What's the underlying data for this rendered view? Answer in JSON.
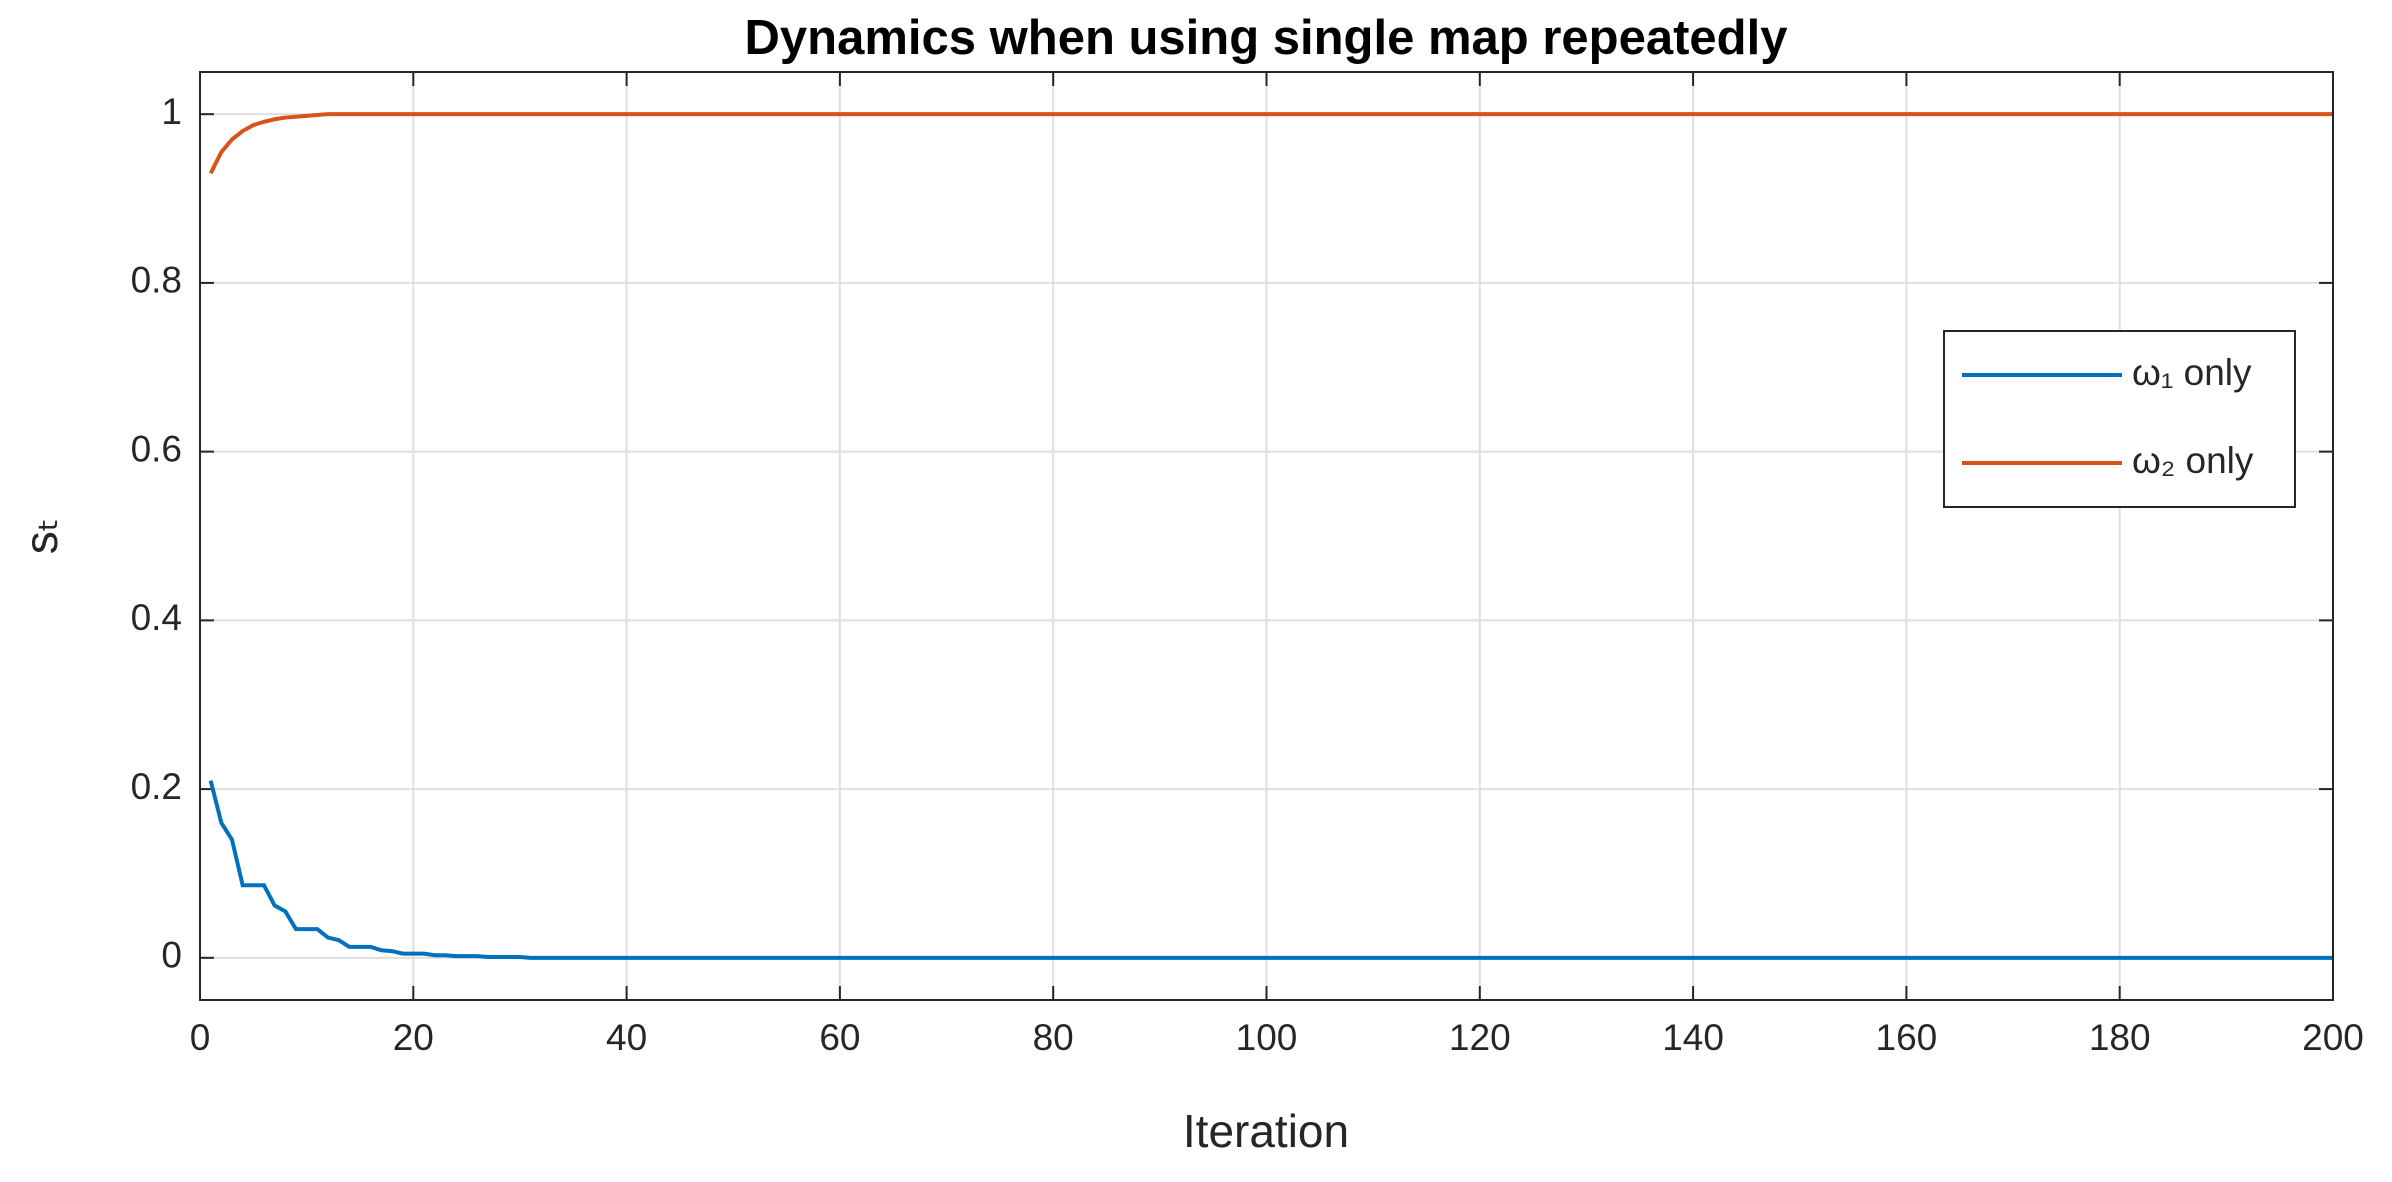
{
  "chart_data": {
    "type": "line",
    "title": "Dynamics when using single map repeatedly",
    "x_label": "Iteration",
    "y_label": "sₜ",
    "x": [
      1,
      2,
      3,
      4,
      5,
      6,
      7,
      8,
      9,
      10,
      11,
      12,
      13,
      14,
      15,
      16,
      17,
      18,
      19,
      20,
      21,
      22,
      23,
      24,
      25,
      26,
      27,
      28,
      29,
      30,
      31,
      32,
      33,
      34,
      35,
      200
    ],
    "series": [
      {
        "name": "ω₁ only",
        "color": "#0072bd",
        "values": [
          0.21,
          0.16,
          0.14,
          0.086,
          0.086,
          0.086,
          0.062,
          0.055,
          0.034,
          0.034,
          0.034,
          0.024,
          0.021,
          0.013,
          0.013,
          0.013,
          0.009,
          0.008,
          0.005,
          0.005,
          0.005,
          0.003,
          0.003,
          0.002,
          0.002,
          0.002,
          0.001,
          0.001,
          0.001,
          0.001,
          0,
          0,
          0,
          0,
          0,
          0
        ]
      },
      {
        "name": "ω₂ only",
        "color": "#d95319",
        "values": [
          0.93,
          0.955,
          0.97,
          0.98,
          0.987,
          0.991,
          0.994,
          0.996,
          0.997,
          0.998,
          0.999,
          1,
          1,
          1,
          1,
          1,
          1,
          1,
          1,
          1,
          1,
          1,
          1,
          1,
          1,
          1,
          1,
          1,
          1,
          1,
          1,
          1,
          1,
          1,
          1,
          1
        ]
      }
    ],
    "xlim": [
      0,
      200
    ],
    "xticks": [
      0,
      20,
      40,
      60,
      80,
      100,
      120,
      140,
      160,
      180,
      200
    ],
    "ylim": [
      -0.05,
      1.05
    ],
    "yticks": [
      0,
      0.2,
      0.4,
      0.6,
      0.8,
      1
    ],
    "grid": true,
    "legend": "right"
  }
}
